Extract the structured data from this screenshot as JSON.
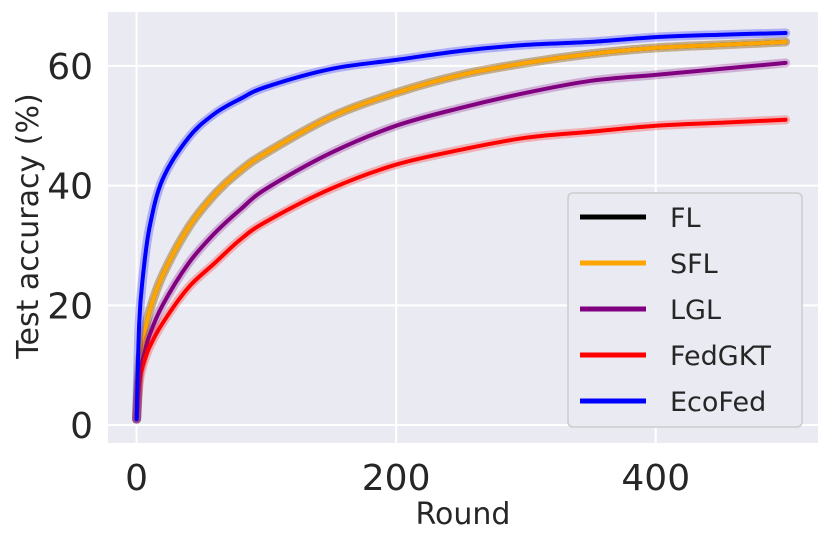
{
  "chart_data": {
    "type": "line",
    "xlabel": "Round",
    "ylabel": "Test accuracy (%)",
    "xlim": [
      -22,
      525
    ],
    "ylim": [
      -3,
      69
    ],
    "xticks": [
      0,
      200,
      400
    ],
    "yticks": [
      0,
      20,
      40,
      60
    ],
    "grid": true,
    "legend_position": "lower-right",
    "x": [
      0,
      2,
      5,
      10,
      20,
      40,
      60,
      80,
      100,
      150,
      200,
      250,
      300,
      350,
      400,
      450,
      500
    ],
    "series": [
      {
        "name": "FL",
        "color": "#000000",
        "values": [
          1,
          10,
          14,
          19,
          25,
          33,
          38.5,
          42.5,
          45.5,
          51.5,
          55.5,
          58.5,
          60.5,
          62,
          63,
          63.5,
          64
        ]
      },
      {
        "name": "SFL",
        "color": "#FFA500",
        "values": [
          1,
          10,
          14,
          19,
          25,
          33,
          38.5,
          42.5,
          45.5,
          51.5,
          55.5,
          58.5,
          60.5,
          62,
          63,
          63.5,
          64
        ]
      },
      {
        "name": "LGL",
        "color": "#800080",
        "values": [
          1,
          8,
          11,
          15,
          20,
          27,
          32,
          36,
          39.5,
          45.5,
          50,
          53,
          55.5,
          57.5,
          58.5,
          59.5,
          60.5
        ]
      },
      {
        "name": "FedGKT",
        "color": "#FF0000",
        "values": [
          1,
          7,
          10,
          13,
          17,
          23,
          27,
          31,
          34,
          39.5,
          43.5,
          46,
          48,
          49,
          50,
          50.5,
          51
        ]
      },
      {
        "name": "EcoFed",
        "color": "#0000FF",
        "values": [
          1,
          17,
          25,
          33,
          41,
          48,
          52,
          54.5,
          56.5,
          59.5,
          61,
          62.5,
          63.5,
          64,
          64.8,
          65.2,
          65.5
        ]
      }
    ]
  }
}
